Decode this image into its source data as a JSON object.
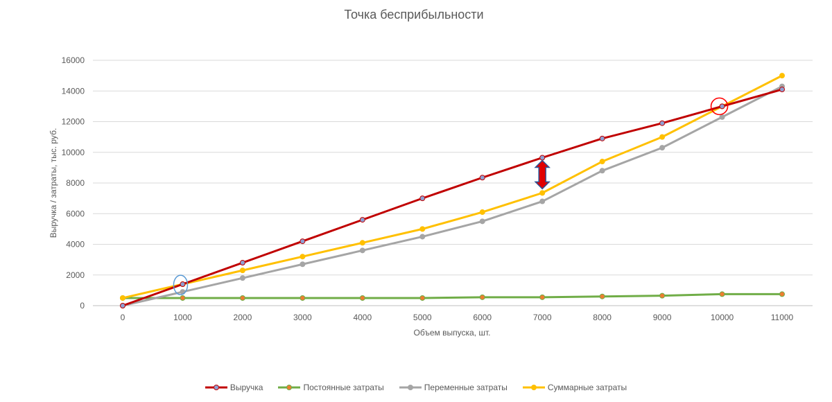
{
  "chart_data": {
    "type": "line",
    "title": "Точка бесприбыльности",
    "xlabel": "Объем выпуска,  шт.",
    "ylabel": "Выручка / затраты, тыс. руб.",
    "x": [
      0,
      1000,
      2000,
      3000,
      4000,
      5000,
      6000,
      7000,
      8000,
      9000,
      10000,
      11000
    ],
    "xticks": [
      "0",
      "1000",
      "2000",
      "3000",
      "4000",
      "5000",
      "6000",
      "7000",
      "8000",
      "9000",
      "10000",
      "11000"
    ],
    "yticks": [
      "0",
      "2000",
      "4000",
      "6000",
      "8000",
      "10000",
      "12000",
      "14000",
      "16000"
    ],
    "ylim": [
      0,
      16000
    ],
    "grid": "horizontal",
    "legend_position": "bottom",
    "series": [
      {
        "name": "Выручка",
        "color": "#C00000",
        "marker_color": "#8E9FD2",
        "values": [
          0,
          1400,
          2800,
          4200,
          5600,
          7000,
          8350,
          9650,
          10900,
          11900,
          13000,
          14100
        ]
      },
      {
        "name": "Постоянные затраты",
        "color": "#70AD47",
        "marker_color": "#ED7D31",
        "values": [
          500,
          500,
          500,
          500,
          500,
          500,
          550,
          550,
          600,
          650,
          750,
          750
        ]
      },
      {
        "name": "Переменные затраты",
        "color": "#A5A5A5",
        "marker_color": "#A5A5A5",
        "values": [
          0,
          900,
          1800,
          2700,
          3600,
          4500,
          5500,
          6800,
          8800,
          10300,
          12300,
          14300
        ]
      },
      {
        "name": "Суммарные затраты",
        "color": "#FFC000",
        "marker_color": "#FFC000",
        "values": [
          500,
          1400,
          2300,
          3200,
          4100,
          5000,
          6100,
          7350,
          9400,
          11000,
          13000,
          15000
        ]
      }
    ],
    "annotations": [
      {
        "type": "ellipse",
        "x": 1000,
        "y": 1350,
        "color": "#5B9BD5"
      },
      {
        "type": "circle",
        "x": 10000,
        "y": 13000,
        "color": "#FF0000"
      },
      {
        "type": "double-arrow",
        "x": 7000,
        "y_from": 7350,
        "y_to": 9650,
        "fill": "#E00000",
        "stroke": "#2F5597"
      }
    ]
  }
}
